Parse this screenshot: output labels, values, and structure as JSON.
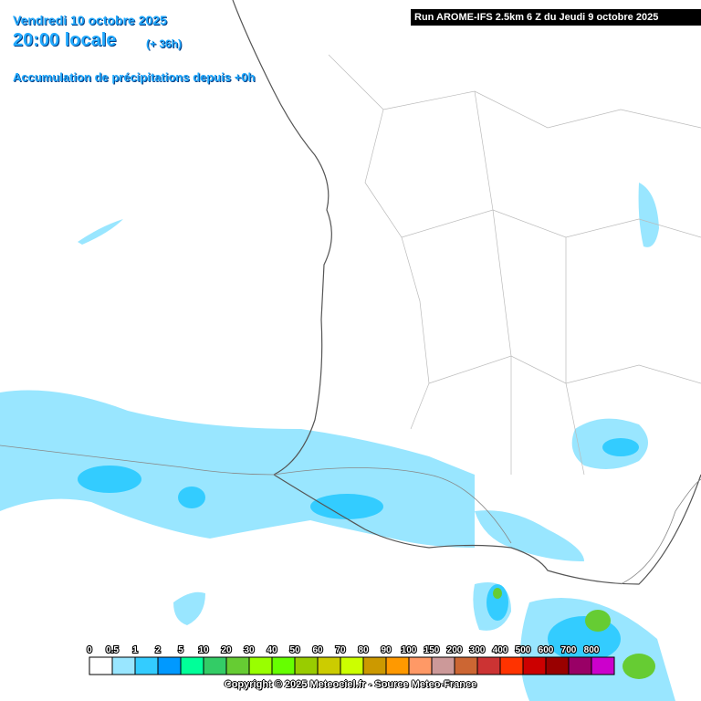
{
  "header": {
    "date": "Vendredi 10 octobre 2025",
    "time": "20:00 locale",
    "lead": "(+ 36h)",
    "product": "Accumulation de précipitations depuis +0h"
  },
  "run": "Run AROME-IFS 2.5km 6 Z du Jeudi 9 octobre 2025",
  "legend": {
    "labels": [
      "0",
      "0.5",
      "1",
      "2",
      "5",
      "10",
      "20",
      "30",
      "40",
      "50",
      "60",
      "70",
      "80",
      "90",
      "100",
      "150",
      "200",
      "300",
      "400",
      "500",
      "600",
      "700",
      "800"
    ],
    "colors": [
      "#ffffff",
      "#99e6ff",
      "#33ccff",
      "#0099ff",
      "#00ff99",
      "#33cc66",
      "#66cc33",
      "#99ff00",
      "#66ff00",
      "#99cc00",
      "#cccc00",
      "#ccff00",
      "#cc9900",
      "#ff9900",
      "#ff9966",
      "#cc9999",
      "#cc6633",
      "#cc3333",
      "#ff3300",
      "#cc0000",
      "#990000",
      "#990066",
      "#cc00cc"
    ]
  },
  "copyright": "Copyright © 2025 Meteociel.fr - Source Meteo-France"
}
